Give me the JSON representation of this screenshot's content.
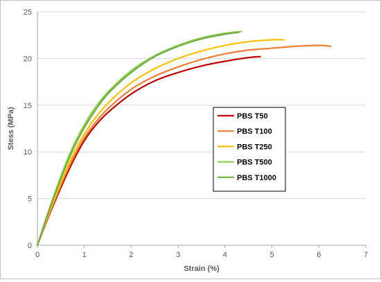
{
  "chart_data": {
    "type": "line",
    "title": "",
    "xlabel": "Strain (%)",
    "ylabel": "Stess (MPa)",
    "xlim": [
      0,
      7
    ],
    "ylim": [
      0,
      25
    ],
    "x_ticks": [
      0,
      1,
      2,
      3,
      4,
      5,
      6,
      7
    ],
    "y_ticks": [
      0,
      5,
      10,
      15,
      20,
      25
    ],
    "grid": "horizontal major gridlines",
    "legend_position": "center-right",
    "series": [
      {
        "name": "PBS T50",
        "color": "#c00000",
        "x": [
          0,
          0.2,
          0.4,
          0.6,
          0.8,
          1.0,
          1.2,
          1.5,
          2.0,
          2.5,
          3.0,
          3.5,
          4.0,
          4.5,
          4.75
        ],
        "y": [
          0,
          2.6,
          5.0,
          7.3,
          9.4,
          11.2,
          12.6,
          14.2,
          16.2,
          17.6,
          18.5,
          19.2,
          19.7,
          20.1,
          20.2
        ]
      },
      {
        "name": "PBS T100",
        "color": "#ed7d31",
        "x": [
          0,
          0.2,
          0.4,
          0.6,
          0.8,
          1.0,
          1.2,
          1.5,
          2.0,
          2.5,
          3.0,
          3.5,
          4.0,
          4.5,
          5.0,
          5.5,
          6.0,
          6.25
        ],
        "y": [
          0,
          2.7,
          5.2,
          7.6,
          9.7,
          11.5,
          12.9,
          14.6,
          16.7,
          18.1,
          19.1,
          19.9,
          20.5,
          20.9,
          21.1,
          21.3,
          21.4,
          21.3
        ]
      },
      {
        "name": "PBS T250",
        "color": "#ffc000",
        "x": [
          0,
          0.2,
          0.4,
          0.6,
          0.8,
          1.0,
          1.2,
          1.5,
          2.0,
          2.5,
          3.0,
          3.5,
          4.0,
          4.5,
          5.0,
          5.25
        ],
        "y": [
          0,
          2.8,
          5.4,
          7.9,
          10.1,
          11.9,
          13.4,
          15.2,
          17.4,
          18.9,
          20.0,
          20.8,
          21.4,
          21.8,
          22.0,
          22.0
        ]
      },
      {
        "name": "PBS T500",
        "color": "#92d050",
        "x": [
          0,
          0.2,
          0.4,
          0.6,
          0.8,
          1.0,
          1.2,
          1.5,
          2.0,
          2.5,
          3.0,
          3.5,
          4.0,
          4.35
        ],
        "y": [
          0,
          3.1,
          6.0,
          8.7,
          11.0,
          12.9,
          14.5,
          16.4,
          18.7,
          20.3,
          21.4,
          22.2,
          22.7,
          22.9
        ]
      },
      {
        "name": "PBS T1000",
        "color": "#70ad47",
        "x": [
          0,
          0.2,
          0.4,
          0.6,
          0.8,
          1.0,
          1.2,
          1.5,
          2.0,
          2.5,
          3.0,
          3.5,
          4.0,
          4.3
        ],
        "y": [
          0,
          3.0,
          5.8,
          8.4,
          10.7,
          12.6,
          14.2,
          16.2,
          18.5,
          20.2,
          21.3,
          22.1,
          22.6,
          22.8
        ]
      }
    ]
  }
}
